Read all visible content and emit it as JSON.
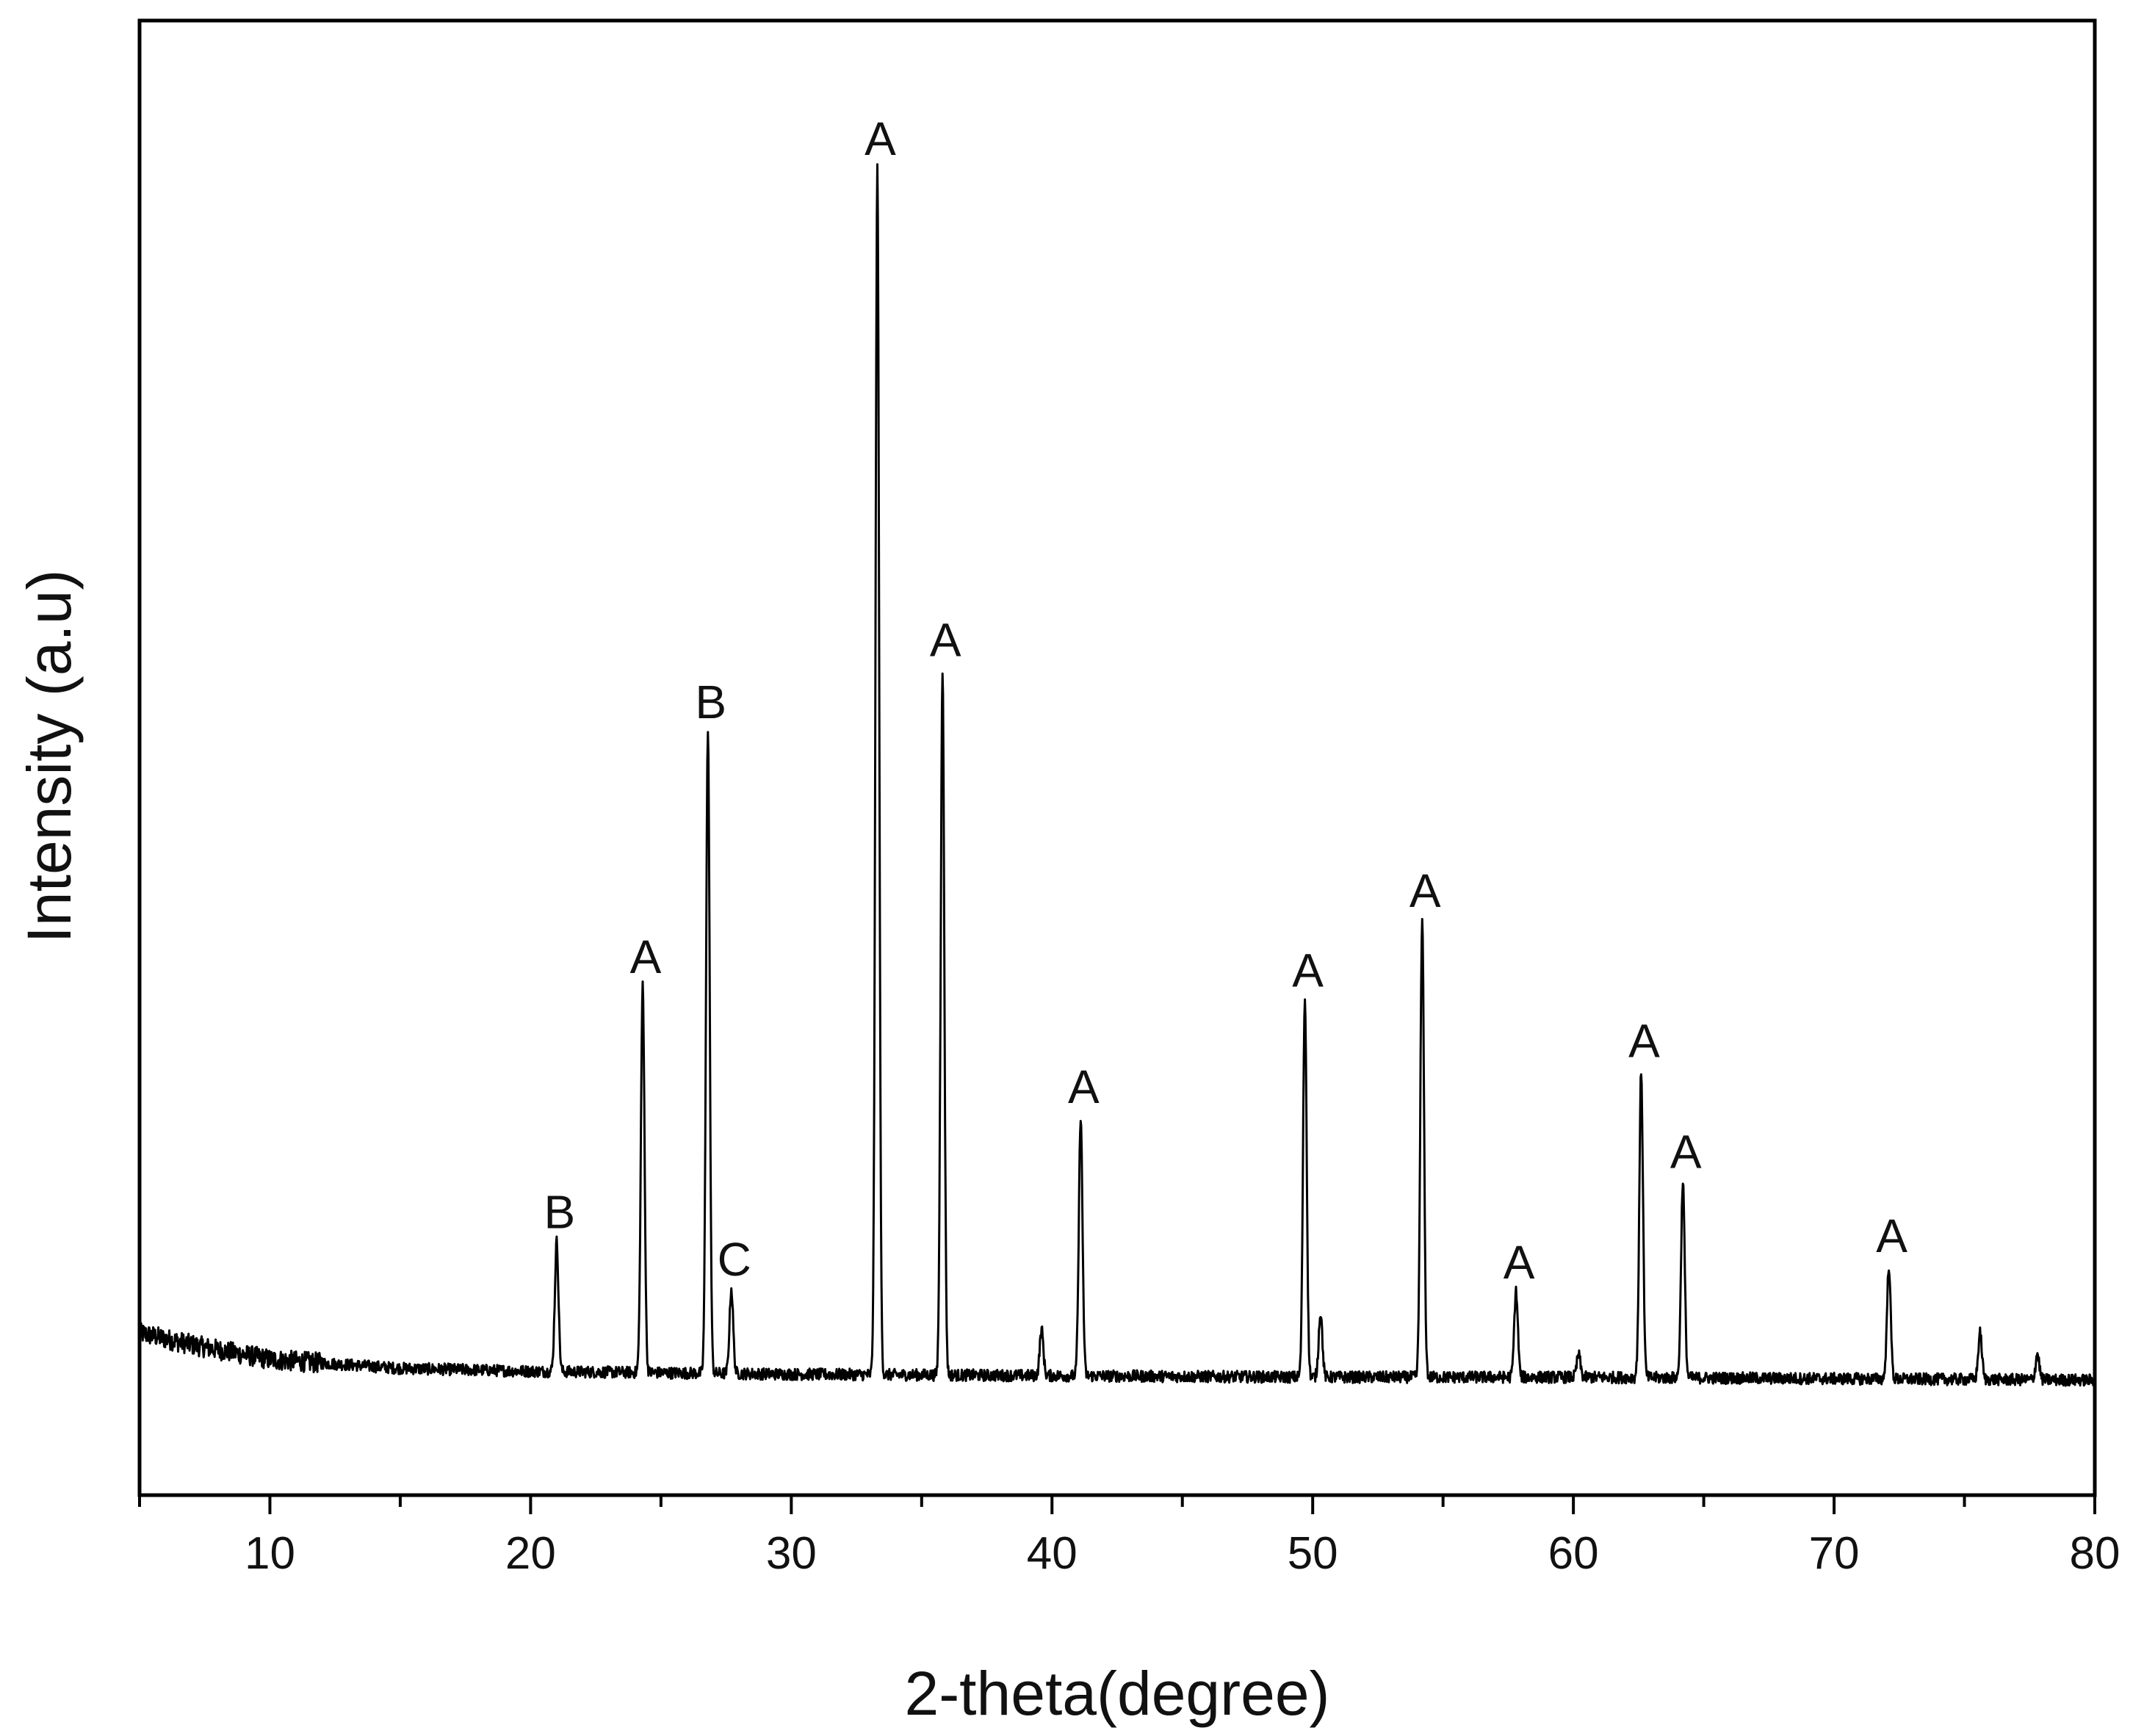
{
  "chart_data": {
    "type": "line",
    "title": "",
    "xlabel": "2-theta(degree)",
    "ylabel": "Intensity (a.u)",
    "xlim": [
      5,
      80
    ],
    "ylim": [
      0,
      1000
    ],
    "x_ticks": [
      10,
      20,
      30,
      40,
      50,
      60,
      70,
      80
    ],
    "x_tick_labels": [
      "10",
      "20",
      "30",
      "40",
      "50",
      "60",
      "70",
      "80"
    ],
    "y_ticks_shown": false,
    "grid": false,
    "legend": "none",
    "line_color": "#000000",
    "baseline": [
      {
        "x": 5,
        "y": 110
      },
      {
        "x": 7,
        "y": 102
      },
      {
        "x": 10,
        "y": 92
      },
      {
        "x": 15,
        "y": 86
      },
      {
        "x": 20,
        "y": 84
      },
      {
        "x": 30,
        "y": 82
      },
      {
        "x": 40,
        "y": 81
      },
      {
        "x": 50,
        "y": 80
      },
      {
        "x": 60,
        "y": 80
      },
      {
        "x": 70,
        "y": 79
      },
      {
        "x": 80,
        "y": 78
      }
    ],
    "peaks": [
      {
        "x": 21.0,
        "y": 172,
        "label": "B"
      },
      {
        "x": 24.3,
        "y": 345,
        "label": "A"
      },
      {
        "x": 26.8,
        "y": 518,
        "label": "B"
      },
      {
        "x": 27.7,
        "y": 140,
        "label": "C"
      },
      {
        "x": 33.3,
        "y": 900,
        "label": "A"
      },
      {
        "x": 35.8,
        "y": 560,
        "label": "A"
      },
      {
        "x": 41.1,
        "y": 257,
        "label": "A"
      },
      {
        "x": 49.7,
        "y": 336,
        "label": "A"
      },
      {
        "x": 54.2,
        "y": 390,
        "label": "A"
      },
      {
        "x": 57.8,
        "y": 138,
        "label": "A"
      },
      {
        "x": 62.6,
        "y": 288,
        "label": "A"
      },
      {
        "x": 64.2,
        "y": 213,
        "label": "A"
      },
      {
        "x": 72.1,
        "y": 156,
        "label": "A"
      },
      {
        "x": 39.6,
        "y": 112,
        "label": ""
      },
      {
        "x": 50.3,
        "y": 124,
        "label": ""
      },
      {
        "x": 60.2,
        "y": 95,
        "label": ""
      },
      {
        "x": 75.6,
        "y": 110,
        "label": ""
      },
      {
        "x": 77.8,
        "y": 96,
        "label": ""
      }
    ]
  }
}
